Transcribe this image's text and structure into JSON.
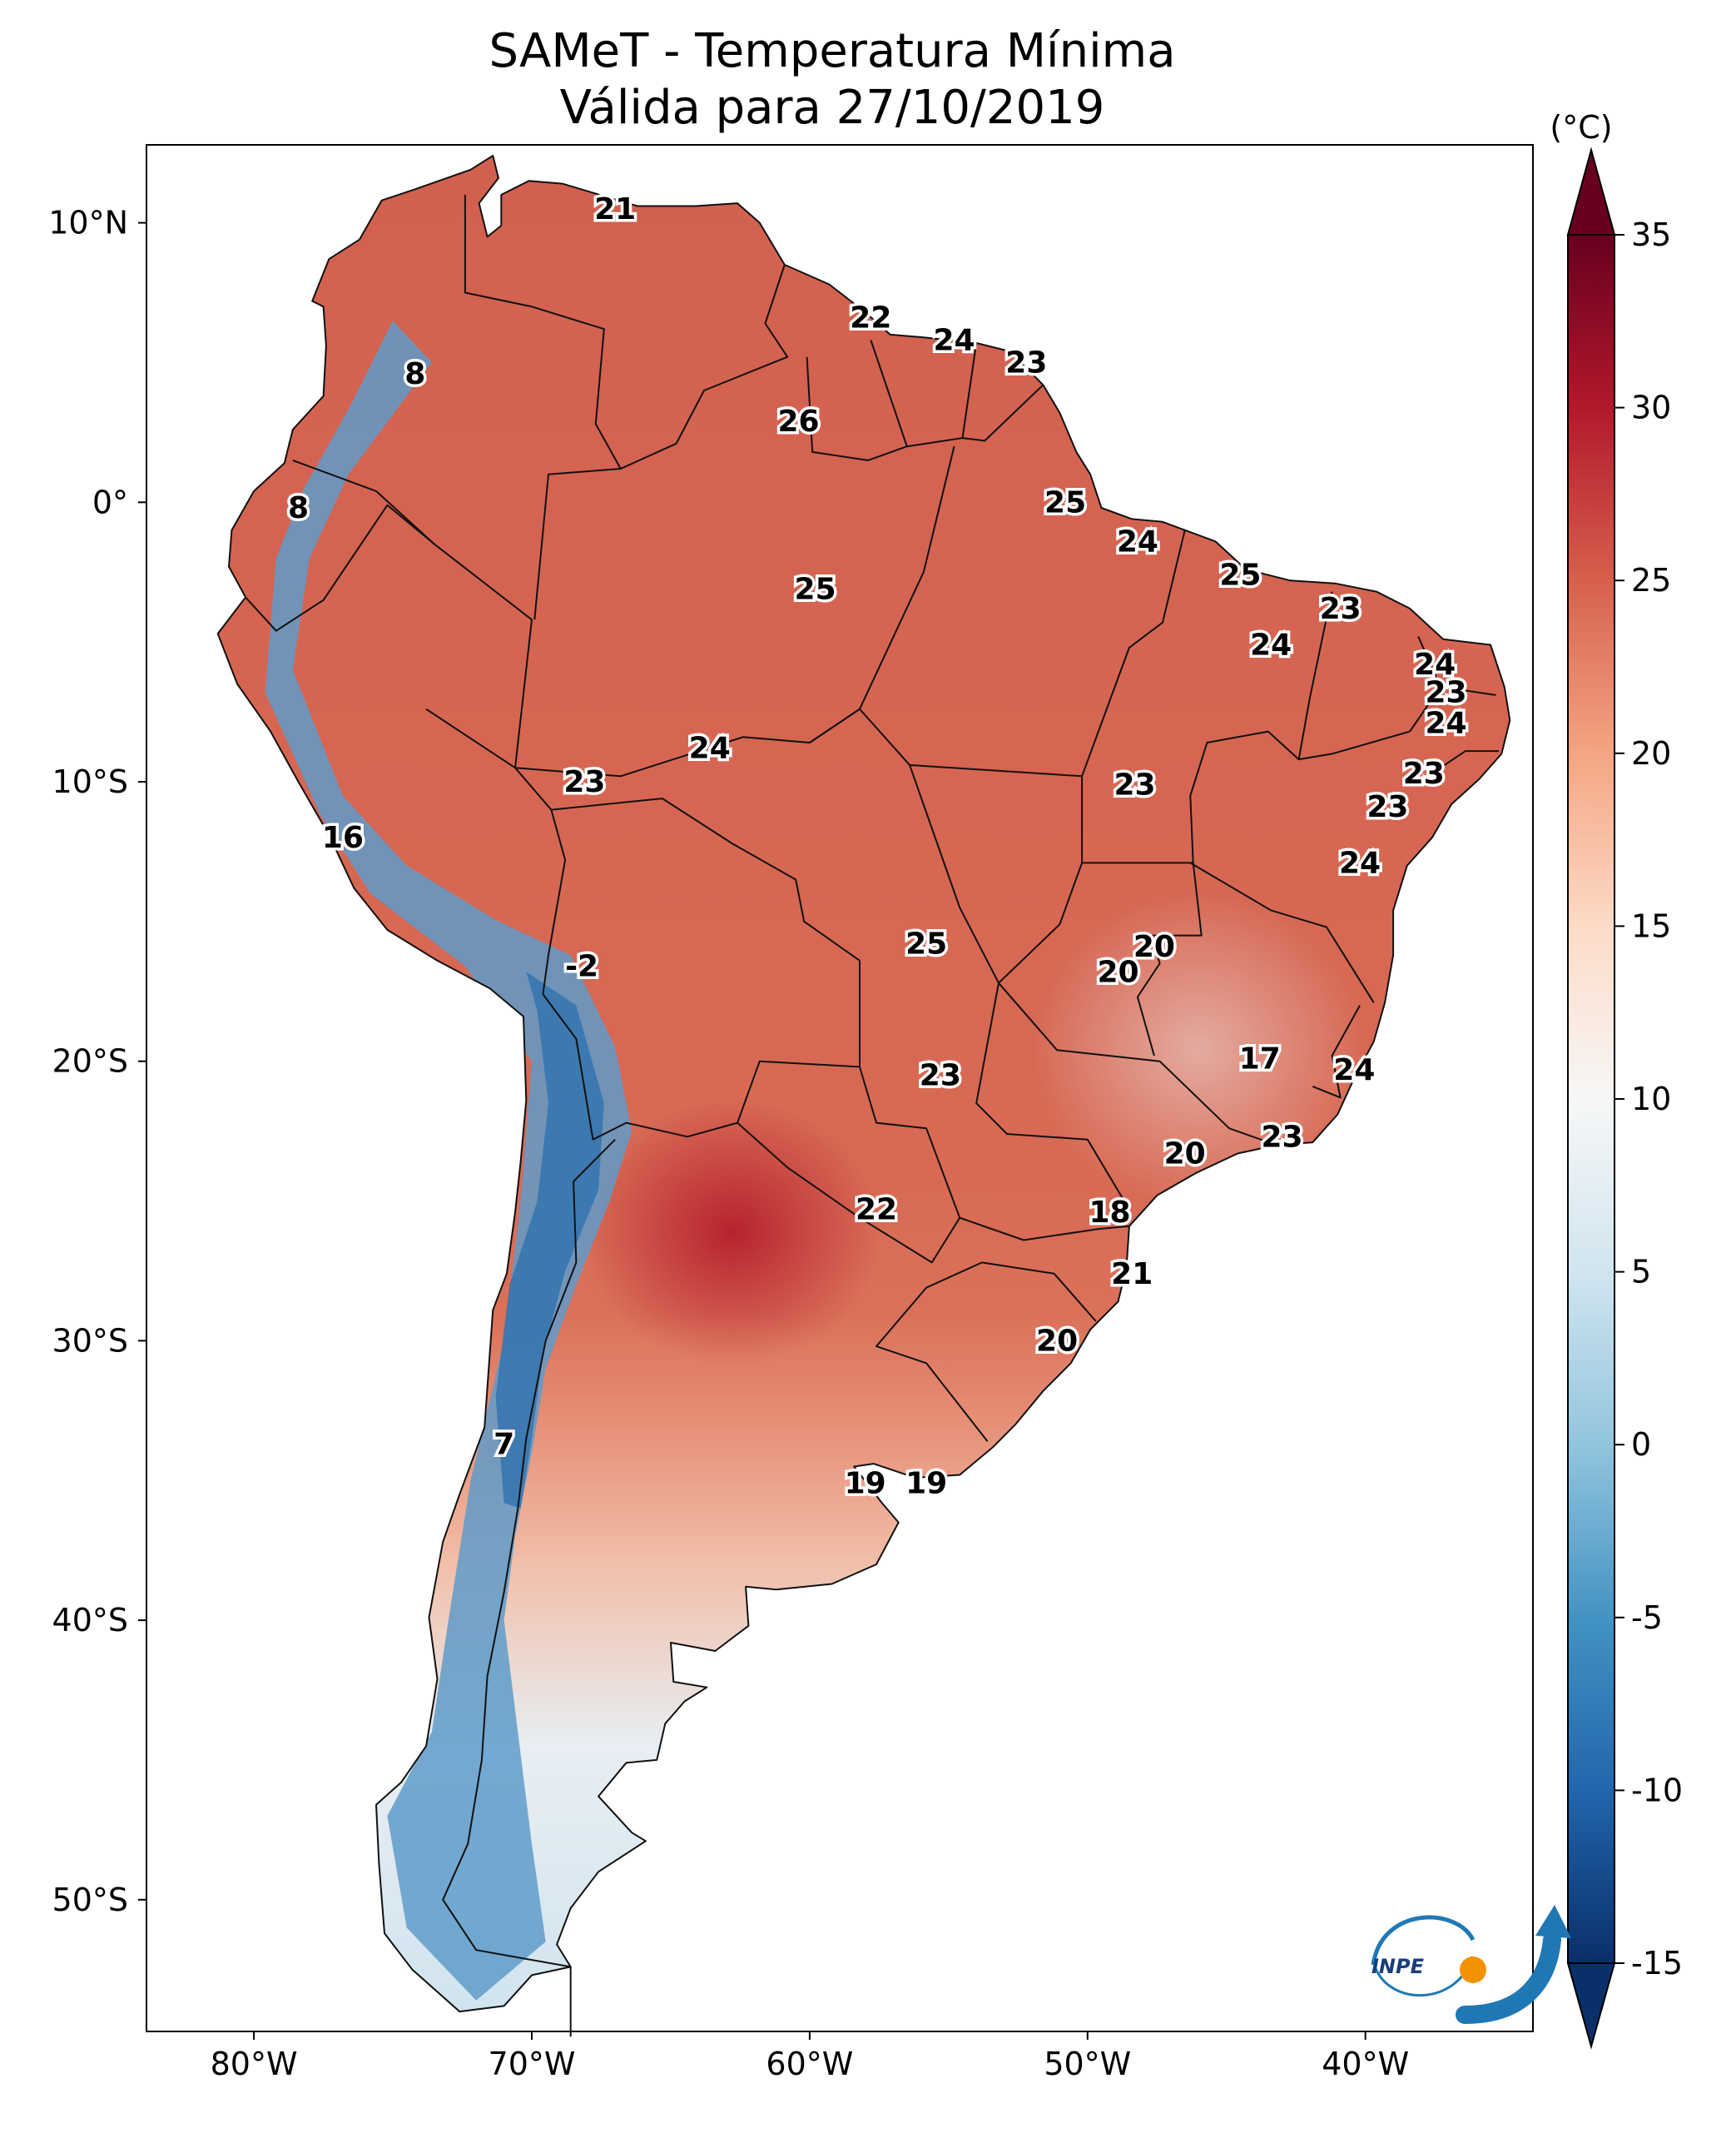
{
  "title_line1": "SAMeT - Temperatura Mínima",
  "title_line2": "Válida para 27/10/2019",
  "colorbar": {
    "unit": "(°C)",
    "ticks": [
      "35",
      "30",
      "25",
      "20",
      "15",
      "10",
      "5",
      "0",
      "-5",
      "-10",
      "-15"
    ],
    "range": [
      -15,
      35
    ],
    "colors": [
      "#0a2f6b",
      "#2166ac",
      "#4393c3",
      "#92c5de",
      "#d1e5f0",
      "#f7f7f7",
      "#fddbc7",
      "#f4a582",
      "#d6604d",
      "#b2182b",
      "#67001f"
    ]
  },
  "axes": {
    "lat_labels": [
      "10°N",
      "0°",
      "10°S",
      "20°S",
      "30°S",
      "40°S",
      "50°S"
    ],
    "lon_labels": [
      "80°W",
      "70°W",
      "60°W",
      "50°W",
      "40°W"
    ]
  },
  "logo": {
    "text": "INPE",
    "icon": "inpe-logo-icon"
  },
  "temperature_labels": [
    {
      "value": "21",
      "lon": -67.0,
      "lat": 10.5
    },
    {
      "value": "22",
      "lon": -57.8,
      "lat": 6.6
    },
    {
      "value": "24",
      "lon": -54.8,
      "lat": 5.8
    },
    {
      "value": "23",
      "lon": -52.2,
      "lat": 5.0
    },
    {
      "value": "8",
      "lon": -74.2,
      "lat": 4.6
    },
    {
      "value": "26",
      "lon": -60.4,
      "lat": 2.9
    },
    {
      "value": "8",
      "lon": -78.4,
      "lat": -0.2
    },
    {
      "value": "25",
      "lon": -50.8,
      "lat": 0.0
    },
    {
      "value": "24",
      "lon": -48.2,
      "lat": -1.4
    },
    {
      "value": "25",
      "lon": -59.8,
      "lat": -3.1
    },
    {
      "value": "25",
      "lon": -44.5,
      "lat": -2.6
    },
    {
      "value": "23",
      "lon": -40.9,
      "lat": -3.8
    },
    {
      "value": "24",
      "lon": -43.4,
      "lat": -5.1
    },
    {
      "value": "24",
      "lon": -37.5,
      "lat": -5.8
    },
    {
      "value": "23",
      "lon": -37.1,
      "lat": -6.8
    },
    {
      "value": "24",
      "lon": -37.1,
      "lat": -7.9
    },
    {
      "value": "24",
      "lon": -63.6,
      "lat": -8.8
    },
    {
      "value": "23",
      "lon": -68.1,
      "lat": -10.0
    },
    {
      "value": "23",
      "lon": -48.3,
      "lat": -10.1
    },
    {
      "value": "23",
      "lon": -37.9,
      "lat": -9.7
    },
    {
      "value": "23",
      "lon": -39.2,
      "lat": -10.9
    },
    {
      "value": "16",
      "lon": -76.8,
      "lat": -12.0
    },
    {
      "value": "24",
      "lon": -40.2,
      "lat": -12.9
    },
    {
      "value": "25",
      "lon": -55.8,
      "lat": -15.8
    },
    {
      "value": "20",
      "lon": -47.6,
      "lat": -15.9
    },
    {
      "value": "20",
      "lon": -48.9,
      "lat": -16.8
    },
    {
      "value": "-2",
      "lon": -68.2,
      "lat": -16.6
    },
    {
      "value": "17",
      "lon": -43.8,
      "lat": -19.9
    },
    {
      "value": "24",
      "lon": -40.4,
      "lat": -20.3
    },
    {
      "value": "23",
      "lon": -55.3,
      "lat": -20.5
    },
    {
      "value": "23",
      "lon": -43.0,
      "lat": -22.7
    },
    {
      "value": "20",
      "lon": -46.5,
      "lat": -23.3
    },
    {
      "value": "22",
      "lon": -57.6,
      "lat": -25.3
    },
    {
      "value": "18",
      "lon": -49.2,
      "lat": -25.4
    },
    {
      "value": "21",
      "lon": -48.4,
      "lat": -27.6
    },
    {
      "value": "20",
      "lon": -51.1,
      "lat": -30.0
    },
    {
      "value": "7",
      "lon": -71.0,
      "lat": -33.7
    },
    {
      "value": "19",
      "lon": -58.0,
      "lat": -35.1
    },
    {
      "value": "19",
      "lon": -55.8,
      "lat": -35.1
    }
  ]
}
